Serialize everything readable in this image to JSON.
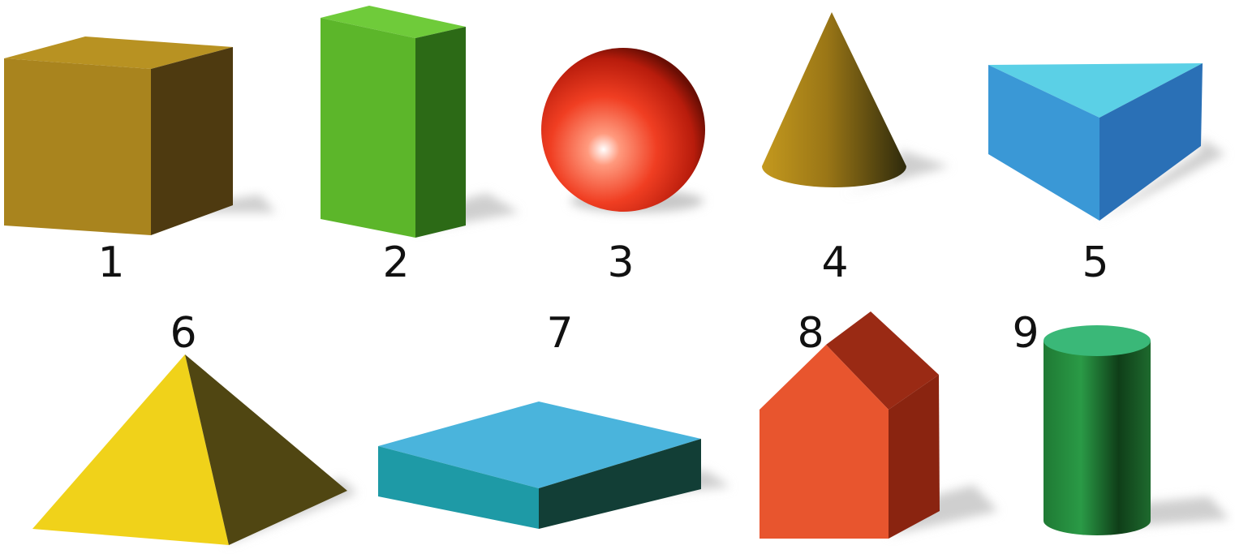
{
  "labels": [
    "1",
    "2",
    "3",
    "4",
    "5",
    "6",
    "7",
    "8",
    "9"
  ],
  "shapes": [
    {
      "label": "1",
      "icon": "cube-icon"
    },
    {
      "label": "2",
      "icon": "rectangular-prism-icon"
    },
    {
      "label": "3",
      "icon": "sphere-icon"
    },
    {
      "label": "4",
      "icon": "cone-icon"
    },
    {
      "label": "5",
      "icon": "triangular-prism-icon"
    },
    {
      "label": "6",
      "icon": "square-pyramid-icon"
    },
    {
      "label": "7",
      "icon": "flat-rectangular-prism-icon"
    },
    {
      "label": "8",
      "icon": "house-prism-icon"
    },
    {
      "label": "9",
      "icon": "cylinder-icon"
    }
  ],
  "colors": {
    "cube": "#b08a1e",
    "tall_prism": "#5cba2c",
    "sphere": "#f04a2e",
    "cone": "#9e7a18",
    "triangular_prism": "#4aa6dc",
    "pyramid": "#f0d21a",
    "flat_prism": "#49b2d8",
    "house": "#e8552e",
    "cylinder": "#2a9a4c"
  }
}
